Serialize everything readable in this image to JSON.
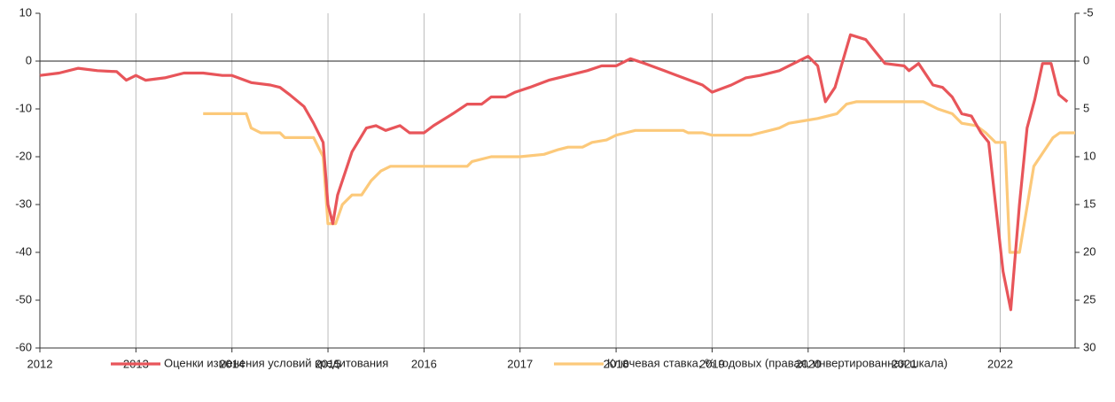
{
  "chart_data": {
    "type": "line",
    "xlim": [
      2012,
      2022.78
    ],
    "xticks": [
      2012,
      2013,
      2014,
      2015,
      2016,
      2017,
      2018,
      2019,
      2020,
      2021,
      2022
    ],
    "ylim": [
      -60,
      10
    ],
    "yticks": [
      10,
      0,
      -10,
      -20,
      -30,
      -40,
      -50,
      -60
    ],
    "y2lim": [
      -5,
      30
    ],
    "y2ticks": [
      -5,
      0,
      5,
      10,
      15,
      20,
      25,
      30
    ],
    "y2_inverted": true,
    "grid": true,
    "legend": "bottom",
    "series": [
      {
        "name": "Оценки изменения условий кредитования",
        "color": "#e8555a",
        "x": [
          2012.0,
          2012.2,
          2012.4,
          2012.6,
          2012.8,
          2012.9,
          2013.0,
          2013.1,
          2013.3,
          2013.5,
          2013.7,
          2013.9,
          2014.0,
          2014.2,
          2014.4,
          2014.5,
          2014.6,
          2014.75,
          2014.85,
          2014.95,
          2015.0,
          2015.05,
          2015.1,
          2015.25,
          2015.4,
          2015.5,
          2015.6,
          2015.75,
          2015.85,
          2016.0,
          2016.1,
          2016.3,
          2016.45,
          2016.6,
          2016.7,
          2016.85,
          2016.95,
          2017.1,
          2017.3,
          2017.5,
          2017.7,
          2017.85,
          2018.0,
          2018.15,
          2018.3,
          2018.5,
          2018.7,
          2018.9,
          2019.0,
          2019.2,
          2019.35,
          2019.5,
          2019.7,
          2019.85,
          2020.0,
          2020.1,
          2020.18,
          2020.28,
          2020.44,
          2020.6,
          2020.7,
          2020.8,
          2021.0,
          2021.05,
          2021.15,
          2021.3,
          2021.4,
          2021.5,
          2021.6,
          2021.7,
          2021.8,
          2021.88,
          2022.03,
          2022.11,
          2022.2,
          2022.28,
          2022.36,
          2022.44,
          2022.53,
          2022.61,
          2022.7
        ],
        "values": [
          -3,
          -2.5,
          -1.5,
          -2,
          -2.2,
          -4,
          -3,
          -4,
          -3.5,
          -2.5,
          -2.5,
          -3,
          -3,
          -4.5,
          -5,
          -5.5,
          -7,
          -9.5,
          -13,
          -17,
          -30,
          -34,
          -28,
          -19,
          -14,
          -13.5,
          -14.5,
          -13.5,
          -15,
          -15,
          -13.5,
          -11,
          -9,
          -9,
          -7.5,
          -7.5,
          -6.5,
          -5.5,
          -4,
          -3,
          -2,
          -1,
          -1,
          0.5,
          -0.5,
          -2,
          -3.5,
          -5,
          -6.5,
          -5,
          -3.5,
          -3,
          -2,
          -0.5,
          1,
          -1,
          -8.5,
          -5.5,
          5.5,
          4.5,
          2,
          -0.5,
          -1,
          -2,
          -0.5,
          -5,
          -5.5,
          -7.5,
          -11,
          -11.5,
          -15,
          -17,
          -44,
          -52,
          -30,
          -14,
          -8,
          -0.5,
          -0.5,
          -7,
          -8.5
        ]
      },
      {
        "name": "Ключевая ставка, % годовых (правая, инвертированная шкала)",
        "color": "#fcc97a",
        "axis": "y2",
        "x": [
          2013.7,
          2014.15,
          2014.2,
          2014.3,
          2014.5,
          2014.55,
          2014.85,
          2014.95,
          2015.0,
          2015.08,
          2015.15,
          2015.25,
          2015.35,
          2015.45,
          2015.55,
          2015.65,
          2016.0,
          2016.45,
          2016.5,
          2016.7,
          2017.0,
          2017.25,
          2017.4,
          2017.5,
          2017.65,
          2017.75,
          2017.9,
          2018.0,
          2018.1,
          2018.2,
          2018.7,
          2018.75,
          2018.9,
          2019.0,
          2019.4,
          2019.5,
          2019.6,
          2019.7,
          2019.8,
          2019.95,
          2020.1,
          2020.3,
          2020.4,
          2020.5,
          2021.2,
          2021.25,
          2021.35,
          2021.5,
          2021.6,
          2021.75,
          2021.85,
          2021.95,
          2022.05,
          2022.1,
          2022.2,
          2022.25,
          2022.3,
          2022.35,
          2022.45,
          2022.55,
          2022.62,
          2022.78
        ],
        "values": [
          5.5,
          5.5,
          7,
          7.5,
          7.5,
          8,
          8,
          10,
          17,
          17,
          15,
          14,
          14,
          12.5,
          11.5,
          11,
          11,
          11,
          10.5,
          10,
          10,
          9.75,
          9.25,
          9,
          9,
          8.5,
          8.25,
          7.75,
          7.5,
          7.25,
          7.25,
          7.5,
          7.5,
          7.75,
          7.75,
          7.5,
          7.25,
          7,
          6.5,
          6.25,
          6,
          5.5,
          4.5,
          4.25,
          4.25,
          4.5,
          5,
          5.5,
          6.5,
          6.75,
          7.5,
          8.5,
          8.5,
          20,
          20,
          17,
          14,
          11,
          9.5,
          8,
          7.5,
          7.5
        ]
      }
    ]
  }
}
